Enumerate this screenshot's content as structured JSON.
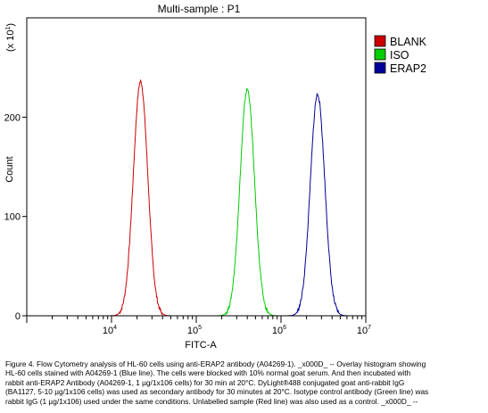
{
  "chart_data": {
    "type": "line",
    "title": "Multi-sample : P1",
    "xlabel": "FITC-A",
    "ylabel": "Count",
    "y_multiplier": "(x 10",
    "y_multiplier_exp": "1",
    "y_multiplier_close": ")",
    "x_scale": "log",
    "xlim": [
      1000,
      10000000
    ],
    "ylim": [
      0,
      300
    ],
    "x_ticks": [
      {
        "value": 10000,
        "base": "10",
        "exp": "4"
      },
      {
        "value": 100000,
        "base": "10",
        "exp": "5"
      },
      {
        "value": 1000000,
        "base": "10",
        "exp": "6"
      },
      {
        "value": 10000000,
        "base": "10",
        "exp": "7"
      }
    ],
    "y_ticks": [
      {
        "value": 0,
        "label": "0"
      },
      {
        "value": 100,
        "label": "100"
      },
      {
        "value": 200,
        "label": "200"
      }
    ],
    "grid": false,
    "legend_position": "right",
    "series": [
      {
        "name": "BLANK",
        "color": "#cc0000",
        "peak_x": 22000,
        "peak_y": 236,
        "width_decades": 0.085
      },
      {
        "name": "ISO",
        "color": "#00cc00",
        "peak_x": 400000,
        "peak_y": 228,
        "width_decades": 0.085
      },
      {
        "name": "ERAP2",
        "color": "#000099",
        "peak_x": 2700000,
        "peak_y": 223,
        "width_decades": 0.085
      }
    ]
  },
  "caption": [
    "Figure 4. Flow Cytometry analysis of HL-60 cells using anti-ERAP2 antibody (A04269-1). _x000D_ -- Overlay histogram showing",
    "HL-60 cells stained with A04269-1 (Blue line). The cells were blocked with 10% normal goat serum. And then incubated with",
    "rabbit anti-ERAP2 Antibody (A04269-1, 1 µg/1x106 cells) for 30 min at 20°C. DyLight®488 conjugated goat anti-rabbit IgG",
    "(BA1127, 5-10 µg/1x106 cells) was used as secondary antibody for 30 minutes at 20°C. Isotype control antibody (Green line) was",
    "rabbit IgG (1 µg/1x106) used under the same conditions. Unlabelled sample (Red line) was also used as a control. _x000D_ --"
  ]
}
